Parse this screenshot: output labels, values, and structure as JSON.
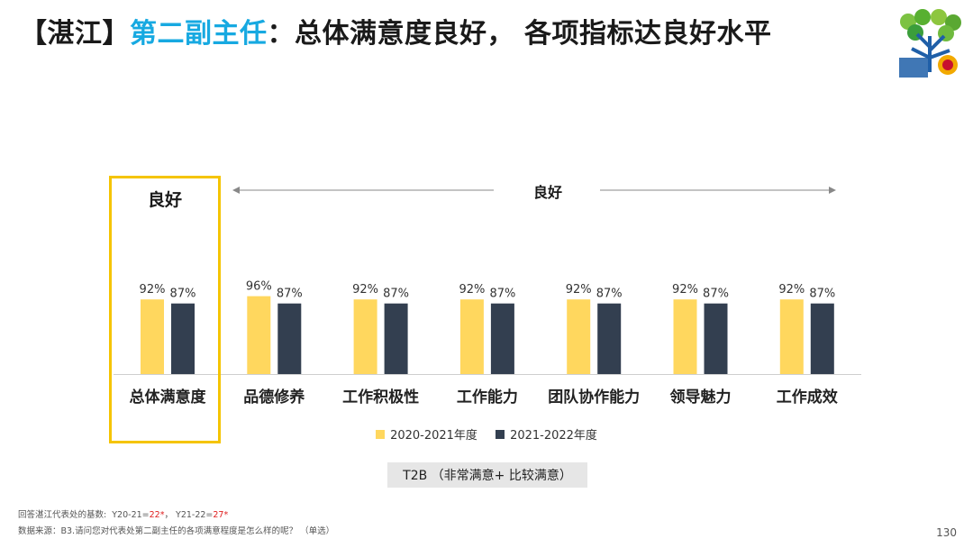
{
  "title": {
    "prefix": "【湛江】",
    "role": "第二副主任",
    "suffix": "：总体满意度良好， 各项指标达良好水平"
  },
  "highlight_label": "良好",
  "range_label": "良好",
  "t2b_label": "T2B （非常满意+ 比较满意）",
  "notes": {
    "base_label": "回答湛江代表处的基数:",
    "base_y20_label": "Y20-21=",
    "base_y20_value": "22*",
    "base_separator": "，",
    "base_y21_label": "Y21-22=",
    "base_y21_value": "27*",
    "source": "数据来源：B3.请问您对代表处第二副主任的各项满意程度是怎么样的呢？ （单选）"
  },
  "page_number": "130",
  "colors": {
    "series1": "#ffd75e",
    "series2": "#333f50",
    "accent": "#17a9e1",
    "highlight": "#f5c400"
  },
  "chart_data": {
    "type": "bar",
    "categories": [
      "总体满意度",
      "品德修养",
      "工作积极性",
      "工作能力",
      "团队协作能力",
      "领导魅力",
      "工作成效"
    ],
    "series": [
      {
        "name": "2020-2021年度",
        "values": [
          92,
          96,
          92,
          92,
          92,
          92,
          92
        ],
        "labels": [
          "92%",
          "96%",
          "92%",
          "92%",
          "92%",
          "92%",
          "92%"
        ]
      },
      {
        "name": "2021-2022年度",
        "values": [
          87,
          87,
          87,
          87,
          87,
          87,
          87
        ],
        "labels": [
          "87%",
          "87%",
          "87%",
          "87%",
          "87%",
          "87%",
          "87%"
        ]
      }
    ],
    "ylim": [
      0,
      100
    ],
    "grid": false,
    "legend": "bottom"
  }
}
